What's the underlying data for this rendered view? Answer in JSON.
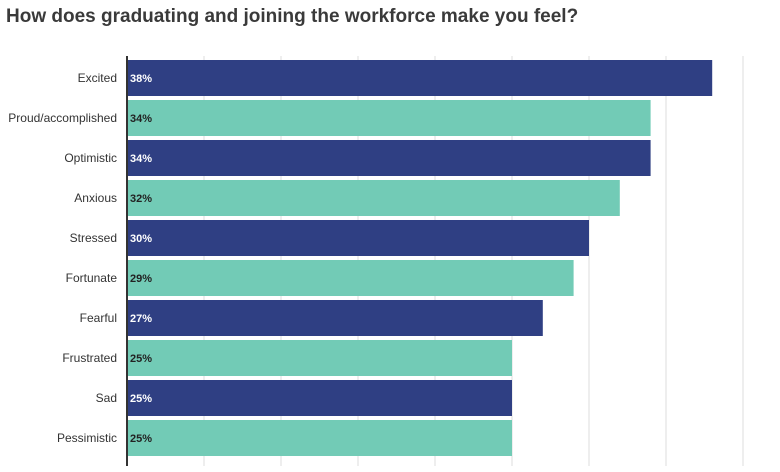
{
  "chart_data": {
    "type": "bar",
    "orientation": "horizontal",
    "title": "How does graduating and joining the workforce make you feel?",
    "categories": [
      "Excited",
      "Proud/accomplished",
      "Optimistic",
      "Anxious",
      "Stressed",
      "Fortunate",
      "Fearful",
      "Frustrated",
      "Sad",
      "Pessimistic"
    ],
    "values": [
      38,
      34,
      34,
      32,
      30,
      29,
      27,
      25,
      25,
      25
    ],
    "value_labels": [
      "38%",
      "34%",
      "34%",
      "32%",
      "30%",
      "29%",
      "27%",
      "25%",
      "25%",
      "25%"
    ],
    "xlim": [
      0,
      40
    ],
    "grid": true,
    "colors": {
      "navy": "#2f3f83",
      "teal": "#72cbb6",
      "grid": "#dddddd",
      "axis": "#333333",
      "label_on_navy": "#ffffff",
      "label_on_teal": "#222222"
    }
  }
}
